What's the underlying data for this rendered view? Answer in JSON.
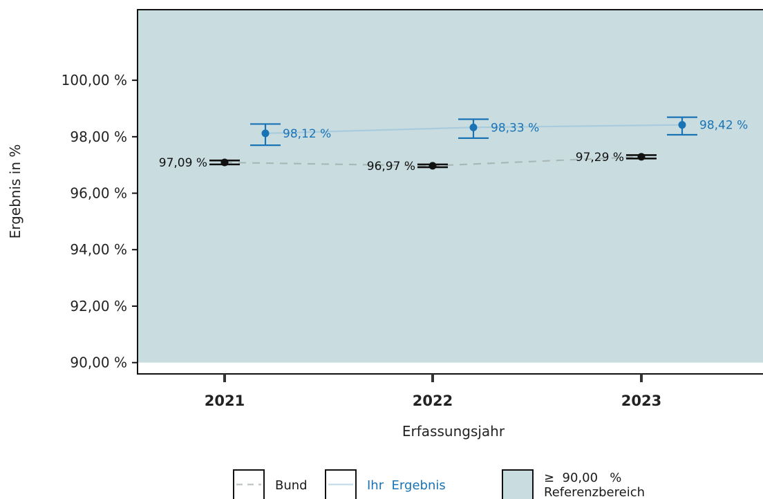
{
  "chart_data": {
    "type": "line",
    "xlabel": "Erfassungsjahr",
    "ylabel": "Ergebnis in %",
    "ylim": [
      89.6,
      102.5
    ],
    "yticks": [
      90,
      92,
      94,
      96,
      98,
      100
    ],
    "ytick_labels": [
      "90,00 %",
      "92,00 %",
      "94,00 %",
      "96,00 %",
      "98,00 %",
      "100,00 %"
    ],
    "categories": [
      "2021",
      "2022",
      "2023"
    ],
    "grid": false,
    "reference_range": {
      "min": 90,
      "label_value": "≥  90,00   %",
      "label_text": "Referenzbereich",
      "color": "#c9dde0"
    },
    "series": [
      {
        "name": "Bund",
        "color": "#111111",
        "line_color": "#a9b8b6",
        "line_style": "dashed",
        "values": [
          97.09,
          96.97,
          97.29
        ],
        "lower": [
          97.02,
          96.92,
          97.23
        ],
        "upper": [
          97.16,
          97.02,
          97.35
        ],
        "labels": [
          "97,09 %",
          "96,97 %",
          "97,29 %"
        ]
      },
      {
        "name": "Ihr  Ergebnis",
        "color": "#1a73b5",
        "line_color": "#a8cbdd",
        "line_style": "solid",
        "values": [
          98.12,
          98.33,
          98.42
        ],
        "lower": [
          97.7,
          97.95,
          98.07
        ],
        "upper": [
          98.45,
          98.62,
          98.69
        ],
        "labels": [
          "98,12 %",
          "98,33 %",
          "98,42 %"
        ]
      }
    ]
  }
}
